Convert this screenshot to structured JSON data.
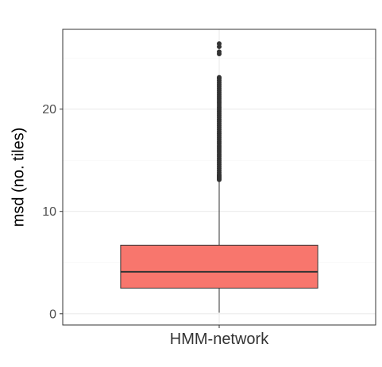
{
  "chart_data": {
    "type": "box",
    "title": "",
    "xlabel": "",
    "ylabel": "msd (no. tiles)",
    "ylim": [
      -1.1,
      27.8
    ],
    "yticks": [
      0,
      10,
      20
    ],
    "grid": true,
    "legend": "none",
    "categories": [
      "HMM-network"
    ],
    "boxes": [
      {
        "category": "HMM-network",
        "fill": "#F8766D",
        "min": 0.1,
        "q1": 2.5,
        "median": 4.1,
        "q3": 6.7,
        "whisker_high": 13.0,
        "outliers": [
          13.1,
          13.2,
          13.3,
          13.4,
          13.5,
          13.6,
          13.8,
          14.0,
          14.2,
          14.4,
          14.6,
          14.8,
          15.0,
          15.2,
          15.4,
          15.6,
          15.8,
          16.0,
          16.2,
          16.4,
          16.6,
          16.8,
          17.0,
          17.2,
          17.4,
          17.6,
          17.8,
          18.0,
          18.2,
          18.4,
          18.6,
          18.8,
          19.0,
          19.2,
          19.4,
          19.6,
          19.8,
          20.0,
          20.2,
          20.4,
          20.6,
          20.8,
          21.0,
          21.2,
          21.4,
          21.6,
          21.8,
          22.0,
          22.2,
          22.4,
          22.6,
          22.8,
          23.0,
          23.1,
          25.4,
          25.6,
          26.1,
          26.4
        ]
      }
    ],
    "colors": {
      "panel_border": "#333333",
      "grid_major": "#ebebeb",
      "grid_minor": "#f4f4f4",
      "box_line": "#333333",
      "outlier": "#333333"
    }
  }
}
